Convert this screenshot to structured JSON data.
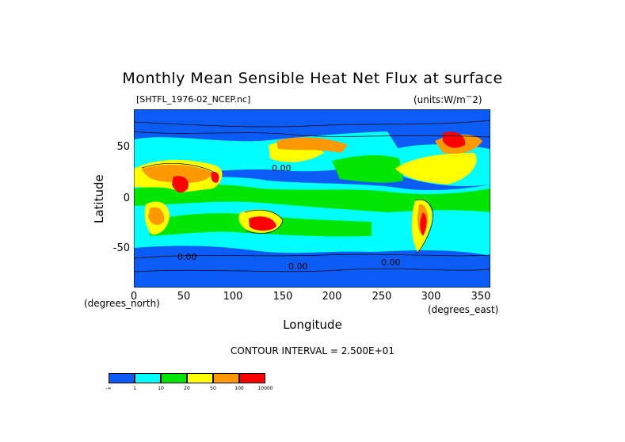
{
  "title": "Monthly Mean Sensible Heat Net Flux at surface",
  "file_label": "[SHTFL_1976-02_NCEP.nc]",
  "units_label": "(units:W/m^2)",
  "axes": {
    "xlabel": "Longitude",
    "ylabel": "Latitude",
    "x_unit": "(degrees_east)",
    "y_unit": "(degrees_north)",
    "xticks": [
      "0",
      "50",
      "100",
      "150",
      "200",
      "250",
      "300",
      "350"
    ],
    "yticks": [
      "50",
      "0",
      "-50"
    ],
    "xlim": [
      0,
      360
    ],
    "ylim": [
      -90,
      90
    ]
  },
  "contour_label": "CONTOUR INTERVAL = 2.500E+01",
  "contour_value_labels": [
    "0.00",
    "0.00",
    "0.00",
    "0.00"
  ],
  "legend": {
    "colors": [
      "#0a5cf5",
      "#00ffff",
      "#00e600",
      "#ffff00",
      "#ff9900",
      "#ff0000"
    ],
    "labels": [
      "-∞",
      "1",
      "10",
      "20",
      "50",
      "100",
      "10000"
    ]
  }
}
